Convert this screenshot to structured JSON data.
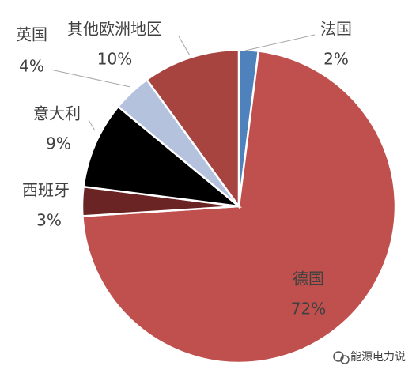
{
  "chart_data": {
    "type": "pie",
    "categories": [
      "法国",
      "德国",
      "西班牙",
      "意大利",
      "英国",
      "其他欧洲地区"
    ],
    "values": [
      2,
      72,
      3,
      9,
      4,
      10
    ],
    "value_labels": [
      "2%",
      "72%",
      "3%",
      "9%",
      "4%",
      "10%"
    ],
    "colors": [
      "#4f81bd",
      "#c0504d",
      "#6b2424",
      "#000000",
      "#b4c2dd",
      "#a8443f"
    ]
  },
  "watermark": "能源电力说"
}
